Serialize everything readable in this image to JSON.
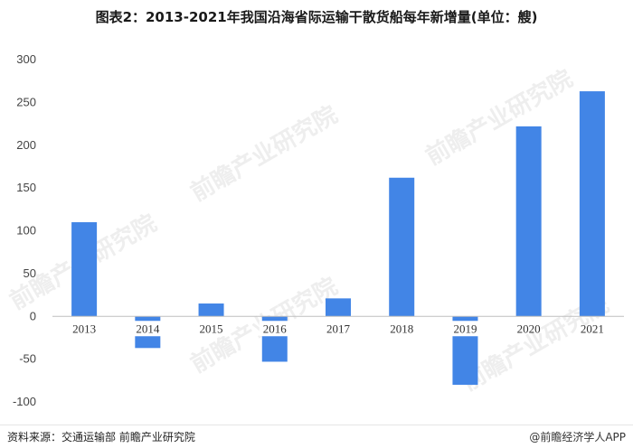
{
  "title": "图表2：2013-2021年我国沿海省际运输干散货船每年新增量(单位：艘)",
  "watermark_text": "前瞻产业研究院",
  "footer": {
    "source": "资料来源：交通运输部 前瞻产业研究院",
    "brand": "@前瞻经济学人APP"
  },
  "colors": {
    "bar": "#4285e6",
    "axis": "#bfbfbf"
  },
  "chart_data": {
    "type": "bar",
    "title": "图表2：2013-2021年我国沿海省际运输干散货船每年新增量(单位：艘)",
    "categories": [
      "2013",
      "2014",
      "2015",
      "2016",
      "2017",
      "2018",
      "2019",
      "2020",
      "2021"
    ],
    "values": [
      110,
      -37,
      15,
      -53,
      21,
      162,
      -80,
      222,
      263
    ],
    "ylim": [
      -100,
      300
    ],
    "yticks": [
      -100,
      -50,
      0,
      50,
      100,
      150,
      200,
      250,
      300
    ],
    "grid": false,
    "xlabel": "",
    "ylabel": ""
  }
}
